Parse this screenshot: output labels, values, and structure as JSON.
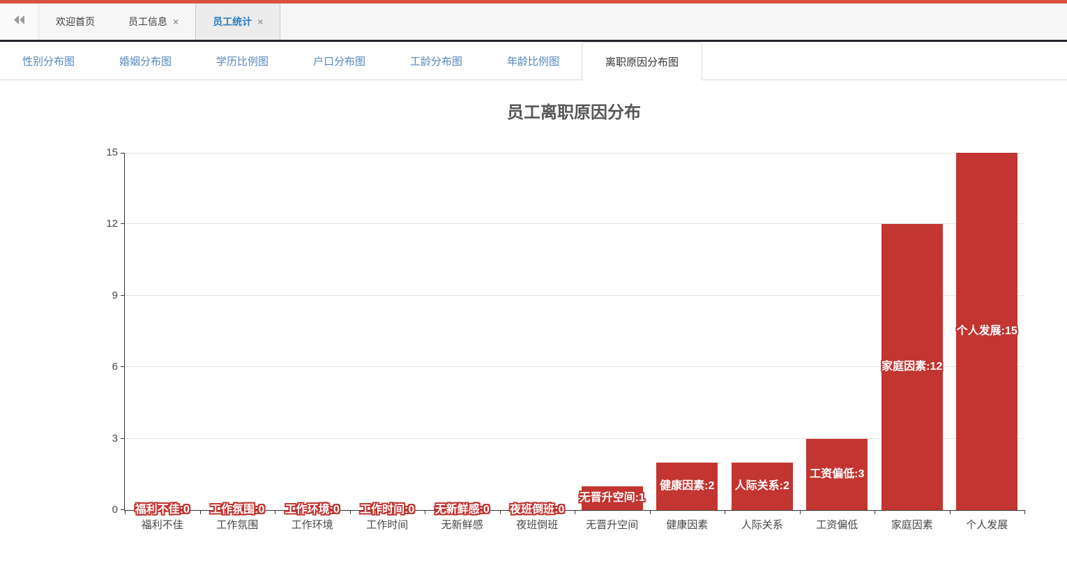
{
  "window": {
    "top_strip_color": "#d9523f"
  },
  "top_tab_bar": {
    "collapse_icon": "double-left-arrow",
    "close_glyph": "×",
    "active_color": "#2d7dbf",
    "tabs": [
      {
        "label": "欢迎首页",
        "closable": false,
        "active": false
      },
      {
        "label": "员工信息",
        "closable": true,
        "active": false
      },
      {
        "label": "员工统计",
        "closable": true,
        "active": true
      }
    ]
  },
  "chart_nav": {
    "link_color": "#5586c1",
    "tabs": [
      {
        "label": "性别分布图",
        "active": false
      },
      {
        "label": "婚姻分布图",
        "active": false
      },
      {
        "label": "学历比例图",
        "active": false
      },
      {
        "label": "户口分布图",
        "active": false
      },
      {
        "label": "工龄分布图",
        "active": false
      },
      {
        "label": "年龄比例图",
        "active": false
      },
      {
        "label": "离职原因分布图",
        "active": true
      }
    ]
  },
  "chart_data": {
    "type": "bar",
    "title": "员工离职原因分布",
    "categories": [
      "福利不佳",
      "工作氛围",
      "工作环境",
      "工作时间",
      "无新鲜感",
      "夜班倒班",
      "无晋升空间",
      "健康因素",
      "人际关系",
      "工资偏低",
      "家庭因素",
      "个人发展"
    ],
    "values": [
      0,
      0,
      0,
      0,
      0,
      0,
      1,
      2,
      2,
      3,
      12,
      15
    ],
    "point_labels": [
      "福利不佳:0",
      "工作氛围:0",
      "工作环境:0",
      "工作时间:0",
      "无新鲜感:0",
      "夜班倒班:0",
      "无晋升空间:1",
      "健康因素:2",
      "人际关系:2",
      "工资偏低:3",
      "家庭因素:12",
      "个人发展:15"
    ],
    "xlabel": "",
    "ylabel": "",
    "ylim": [
      0,
      15
    ],
    "yticks": [
      0,
      3,
      6,
      9,
      12,
      15
    ],
    "grid": true,
    "legend": false,
    "bar_color": "#c23531",
    "label_color": "#ffffff",
    "label_outline_color": "#c23531",
    "axis_color": "#333333",
    "gridline_color": "#e4e4e4"
  }
}
